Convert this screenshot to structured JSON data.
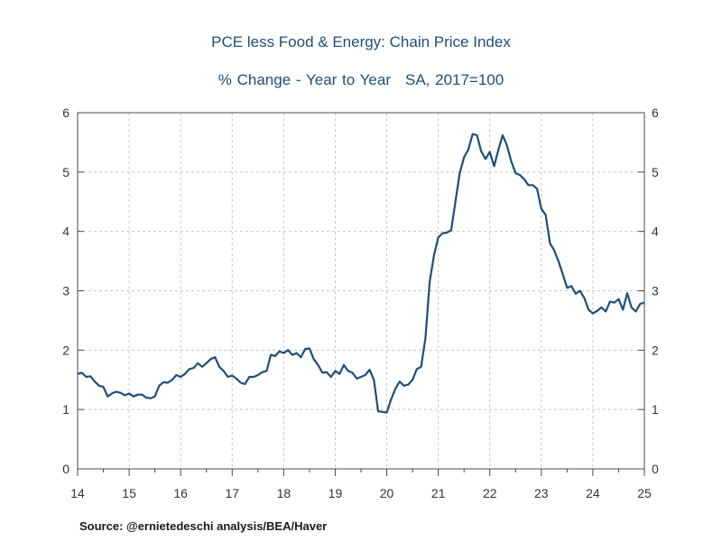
{
  "chart_data": {
    "type": "line",
    "title": "PCE less Food & Energy: Chain Price Index",
    "subtitle_left": "% Change - Year to Year",
    "subtitle_right": "SA, 2017=100",
    "xlabel": "",
    "ylabel": "",
    "xlim": [
      2014,
      2025
    ],
    "ylim": [
      0,
      6
    ],
    "x_tick_labels": [
      "14",
      "15",
      "16",
      "17",
      "18",
      "19",
      "20",
      "21",
      "22",
      "23",
      "24",
      "25"
    ],
    "y_tick_labels": [
      "0",
      "1",
      "2",
      "3",
      "4",
      "5",
      "6"
    ],
    "grid": true,
    "series": [
      {
        "color": "#1f4e79",
        "x": [
          2014.0,
          2014.083,
          2014.167,
          2014.25,
          2014.333,
          2014.417,
          2014.5,
          2014.583,
          2014.667,
          2014.75,
          2014.833,
          2014.917,
          2015.0,
          2015.083,
          2015.167,
          2015.25,
          2015.333,
          2015.417,
          2015.5,
          2015.583,
          2015.667,
          2015.75,
          2015.833,
          2015.917,
          2016.0,
          2016.083,
          2016.167,
          2016.25,
          2016.333,
          2016.417,
          2016.5,
          2016.583,
          2016.667,
          2016.75,
          2016.833,
          2016.917,
          2017.0,
          2017.083,
          2017.167,
          2017.25,
          2017.333,
          2017.417,
          2017.5,
          2017.583,
          2017.667,
          2017.75,
          2017.833,
          2017.917,
          2018.0,
          2018.083,
          2018.167,
          2018.25,
          2018.333,
          2018.417,
          2018.5,
          2018.583,
          2018.667,
          2018.75,
          2018.833,
          2018.917,
          2019.0,
          2019.083,
          2019.167,
          2019.25,
          2019.333,
          2019.417,
          2019.5,
          2019.583,
          2019.667,
          2019.75,
          2019.833,
          2019.917,
          2020.0,
          2020.083,
          2020.167,
          2020.25,
          2020.333,
          2020.417,
          2020.5,
          2020.583,
          2020.667,
          2020.75,
          2020.833,
          2020.917,
          2021.0,
          2021.083,
          2021.167,
          2021.25,
          2021.333,
          2021.417,
          2021.5,
          2021.583,
          2021.667,
          2021.75,
          2021.833,
          2021.917,
          2022.0,
          2022.083,
          2022.167,
          2022.25,
          2022.333,
          2022.417,
          2022.5,
          2022.583,
          2022.667,
          2022.75,
          2022.833,
          2022.917,
          2023.0,
          2023.083,
          2023.167,
          2023.25,
          2023.333,
          2023.417,
          2023.5,
          2023.583,
          2023.667,
          2023.75,
          2023.833,
          2023.917,
          2024.0,
          2024.083,
          2024.167,
          2024.25,
          2024.333,
          2024.417,
          2024.5,
          2024.583,
          2024.667,
          2024.75,
          2024.833,
          2024.917,
          2025.0
        ],
        "values": [
          1.6,
          1.62,
          1.55,
          1.56,
          1.47,
          1.4,
          1.38,
          1.22,
          1.27,
          1.3,
          1.28,
          1.24,
          1.27,
          1.22,
          1.25,
          1.25,
          1.2,
          1.19,
          1.22,
          1.4,
          1.46,
          1.45,
          1.5,
          1.58,
          1.55,
          1.6,
          1.68,
          1.7,
          1.78,
          1.72,
          1.78,
          1.85,
          1.88,
          1.72,
          1.65,
          1.55,
          1.57,
          1.52,
          1.45,
          1.43,
          1.55,
          1.55,
          1.58,
          1.63,
          1.65,
          1.92,
          1.9,
          1.98,
          1.95,
          2.0,
          1.92,
          1.95,
          1.88,
          2.02,
          2.03,
          1.85,
          1.75,
          1.62,
          1.63,
          1.55,
          1.65,
          1.6,
          1.75,
          1.65,
          1.62,
          1.52,
          1.55,
          1.58,
          1.67,
          1.5,
          0.97,
          0.96,
          0.95,
          1.17,
          1.35,
          1.47,
          1.4,
          1.42,
          1.5,
          1.68,
          1.72,
          2.2,
          3.15,
          3.6,
          3.9,
          3.97,
          3.98,
          4.02,
          4.5,
          4.98,
          5.25,
          5.38,
          5.64,
          5.62,
          5.35,
          5.22,
          5.34,
          5.1,
          5.38,
          5.62,
          5.45,
          5.18,
          4.98,
          4.95,
          4.88,
          4.78,
          4.78,
          4.72,
          4.38,
          4.28,
          3.8,
          3.68,
          3.5,
          3.28,
          3.05,
          3.08,
          2.95,
          3.0,
          2.88,
          2.68,
          2.62,
          2.66,
          2.72,
          2.65,
          2.82,
          2.8,
          2.86,
          2.68,
          2.96,
          2.72,
          2.65,
          2.78,
          2.8
        ]
      }
    ]
  },
  "source": "Source:  @ernietedeschi analysis/BEA/Haver"
}
